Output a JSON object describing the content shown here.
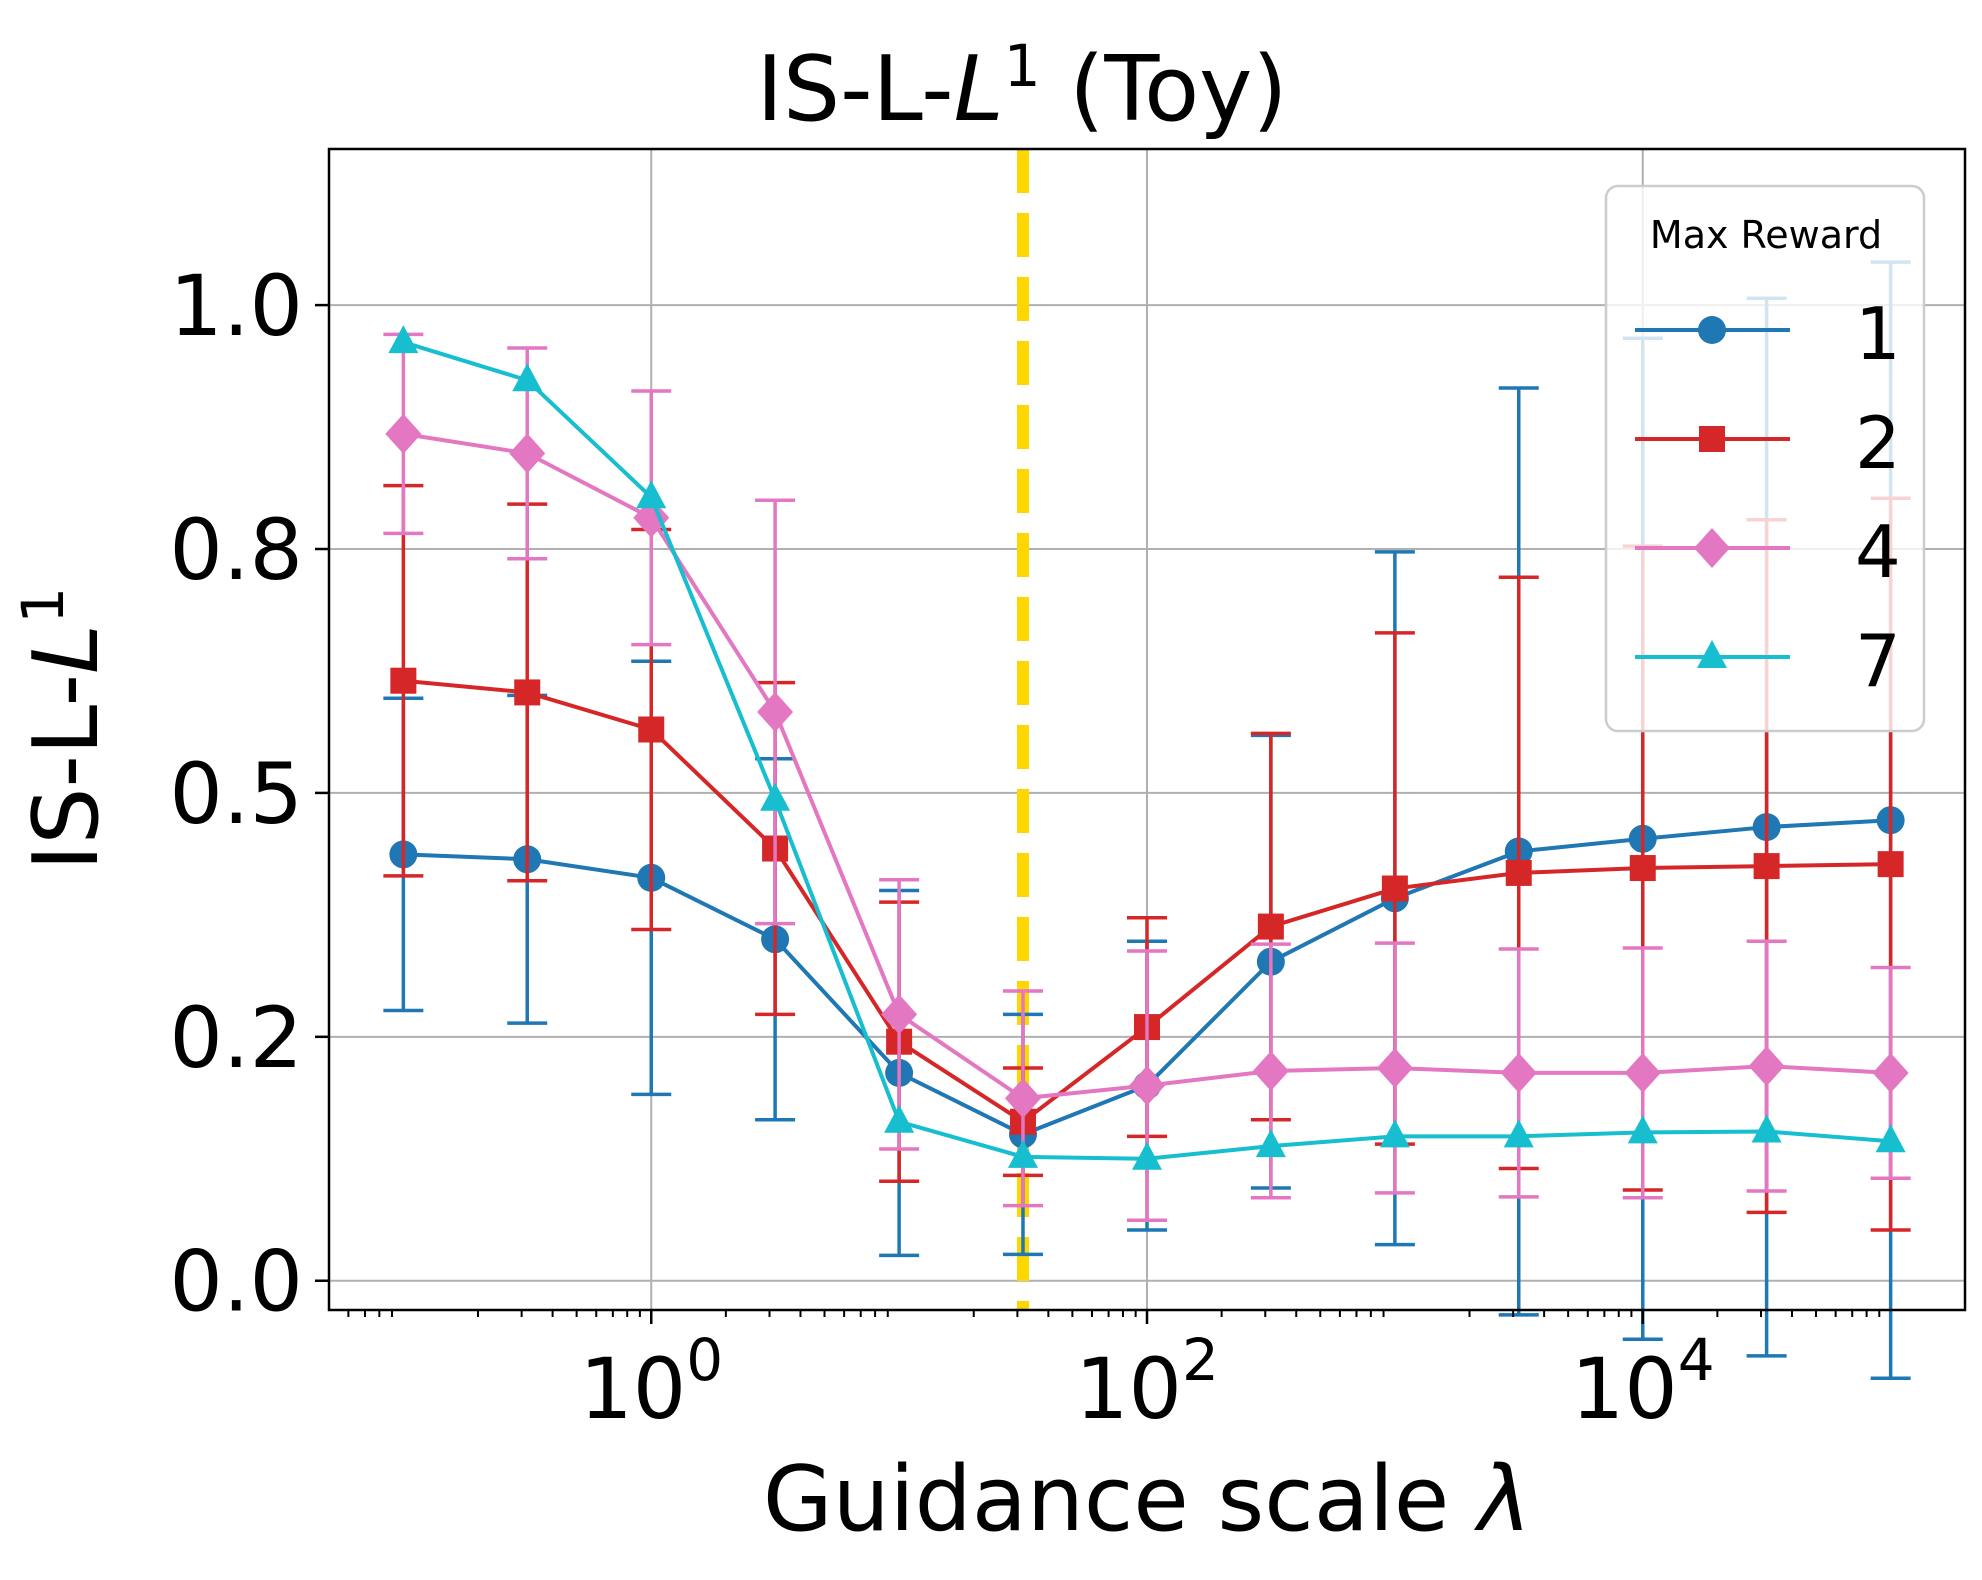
{
  "chart_data": {
    "type": "line",
    "title_main": "IS-L-",
    "title_italic": "L",
    "title_sup": "1",
    "title_suffix": " (Toy)",
    "xlabel_main": "Guidance scale ",
    "xlabel_italic": "λ",
    "ylabel_main": "IS-L-",
    "ylabel_italic": "L",
    "ylabel_sup": "1",
    "xscale": "log",
    "xlim_log10": [
      -1.3,
      5.3
    ],
    "ylim": [
      -0.03,
      1.16
    ],
    "grid": true,
    "x_ticks": [
      {
        "exp": 0,
        "base": "10",
        "sup": "0"
      },
      {
        "exp": 2,
        "base": "10",
        "sup": "2"
      },
      {
        "exp": 4,
        "base": "10",
        "sup": "4"
      }
    ],
    "y_ticks": [
      {
        "value": 0.0,
        "label": "0.0"
      },
      {
        "value": 0.25,
        "label": "0.2"
      },
      {
        "value": 0.5,
        "label": "0.5"
      },
      {
        "value": 0.75,
        "label": "0.8"
      },
      {
        "value": 1.0,
        "label": "1.0"
      }
    ],
    "x": [
      0.1,
      0.316,
      1,
      3.16,
      10,
      31.6,
      100,
      316,
      1000,
      3160,
      10000,
      31600,
      100000
    ],
    "vline": {
      "x": 31.6,
      "color": "#FFD700",
      "style": "dashed"
    },
    "legend": {
      "title": "Max Reward",
      "position": "top-right"
    },
    "series": [
      {
        "name": "1",
        "color": "#1f77b4",
        "marker": "circle",
        "values": [
          0.437,
          0.432,
          0.413,
          0.35,
          0.213,
          0.15,
          0.2,
          0.327,
          0.392,
          0.44,
          0.453,
          0.465,
          0.472
        ],
        "errors": [
          0.16,
          0.168,
          0.222,
          0.185,
          0.187,
          0.123,
          0.148,
          0.232,
          0.355,
          0.475,
          0.513,
          0.542,
          0.572
        ]
      },
      {
        "name": "2",
        "color": "#d62728",
        "marker": "square",
        "values": [
          0.615,
          0.603,
          0.565,
          0.443,
          0.245,
          0.163,
          0.26,
          0.363,
          0.402,
          0.418,
          0.423,
          0.425,
          0.427
        ],
        "errors": [
          0.2,
          0.193,
          0.205,
          0.17,
          0.143,
          0.055,
          0.112,
          0.198,
          0.262,
          0.303,
          0.33,
          0.355,
          0.375
        ]
      },
      {
        "name": "4",
        "color": "#e377c2",
        "marker": "diamond",
        "values": [
          0.868,
          0.848,
          0.782,
          0.583,
          0.273,
          0.187,
          0.2,
          0.215,
          0.218,
          0.213,
          0.213,
          0.22,
          0.213
        ],
        "errors": [
          0.102,
          0.108,
          0.13,
          0.217,
          0.138,
          0.11,
          0.138,
          0.13,
          0.128,
          0.127,
          0.128,
          0.128,
          0.108
        ]
      },
      {
        "name": "7",
        "color": "#17becf",
        "marker": "triangle",
        "values": [
          0.962,
          0.923,
          0.803,
          0.493,
          0.163,
          0.127,
          0.125,
          0.138,
          0.148,
          0.148,
          0.152,
          0.153,
          0.143
        ]
      }
    ]
  }
}
